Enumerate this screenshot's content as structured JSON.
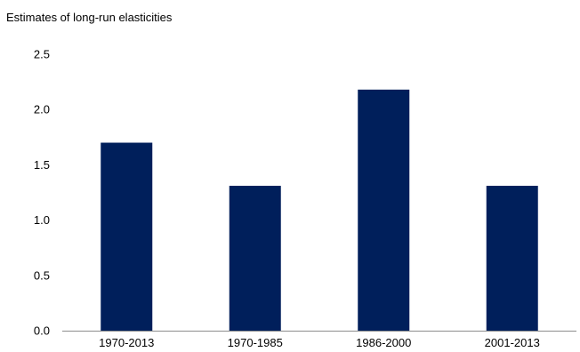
{
  "chart_data": {
    "type": "bar",
    "title": "Estimates of long-run elasticities",
    "xlabel": "",
    "ylabel": "",
    "categories": [
      "1970-2013",
      "1970-1985",
      "1986-2000",
      "2001-2013"
    ],
    "values": [
      1.7,
      1.31,
      2.18,
      1.31
    ],
    "ylim": [
      0,
      2.5
    ],
    "yticks": [
      "0.0",
      "0.5",
      "1.0",
      "1.5",
      "2.0",
      "2.5"
    ],
    "grid": false,
    "legend": "none",
    "bar_color": "#001f5b",
    "axis_color": "#8c8c8c"
  }
}
